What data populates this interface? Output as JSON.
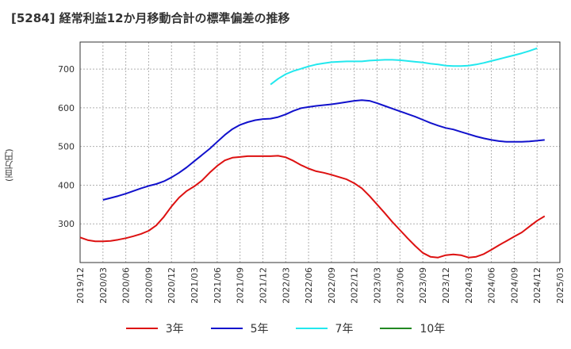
{
  "title": "[5284]  経常利益12か月移動合計の標準偏差の推移",
  "chart_data": {
    "type": "line",
    "title": "[5284]  経常利益12か月移動合計の標準偏差の推移",
    "ylabel": "(百万円)",
    "xlabel": "",
    "ylim": [
      200,
      770
    ],
    "xlim": [
      "2019-12",
      "2025-03"
    ],
    "y_ticks": [
      300,
      400,
      500,
      600,
      700
    ],
    "x_ticks": [
      "2019/12",
      "2020/03",
      "2020/06",
      "2020/09",
      "2020/12",
      "2021/03",
      "2021/06",
      "2021/09",
      "2021/12",
      "2022/03",
      "2022/06",
      "2022/09",
      "2022/12",
      "2023/03",
      "2023/06",
      "2023/09",
      "2023/12",
      "2024/03",
      "2024/06",
      "2024/09",
      "2024/12",
      "2025/03"
    ],
    "grid": true,
    "legend_position": "bottom",
    "series": [
      {
        "name": "3年",
        "color": "#dd1111",
        "points": [
          [
            "2019-12",
            265
          ],
          [
            "2020-01",
            258
          ],
          [
            "2020-02",
            255
          ],
          [
            "2020-03",
            255
          ],
          [
            "2020-04",
            256
          ],
          [
            "2020-05",
            259
          ],
          [
            "2020-06",
            263
          ],
          [
            "2020-07",
            268
          ],
          [
            "2020-08",
            274
          ],
          [
            "2020-09",
            282
          ],
          [
            "2020-10",
            296
          ],
          [
            "2020-11",
            318
          ],
          [
            "2020-12",
            345
          ],
          [
            "2021-01",
            368
          ],
          [
            "2021-02",
            385
          ],
          [
            "2021-03",
            397
          ],
          [
            "2021-04",
            412
          ],
          [
            "2021-05",
            432
          ],
          [
            "2021-06",
            450
          ],
          [
            "2021-07",
            464
          ],
          [
            "2021-08",
            471
          ],
          [
            "2021-09",
            473
          ],
          [
            "2021-10",
            475
          ],
          [
            "2021-11",
            475
          ],
          [
            "2021-12",
            475
          ],
          [
            "2022-01",
            475
          ],
          [
            "2022-02",
            476
          ],
          [
            "2022-03",
            472
          ],
          [
            "2022-04",
            463
          ],
          [
            "2022-05",
            452
          ],
          [
            "2022-06",
            443
          ],
          [
            "2022-07",
            436
          ],
          [
            "2022-08",
            432
          ],
          [
            "2022-09",
            427
          ],
          [
            "2022-10",
            421
          ],
          [
            "2022-11",
            415
          ],
          [
            "2022-12",
            405
          ],
          [
            "2023-01",
            392
          ],
          [
            "2023-02",
            372
          ],
          [
            "2023-03",
            350
          ],
          [
            "2023-04",
            328
          ],
          [
            "2023-05",
            305
          ],
          [
            "2023-06",
            284
          ],
          [
            "2023-07",
            263
          ],
          [
            "2023-08",
            243
          ],
          [
            "2023-09",
            225
          ],
          [
            "2023-10",
            215
          ],
          [
            "2023-11",
            213
          ],
          [
            "2023-12",
            219
          ],
          [
            "2024-01",
            221
          ],
          [
            "2024-02",
            219
          ],
          [
            "2024-03",
            213
          ],
          [
            "2024-04",
            215
          ],
          [
            "2024-05",
            222
          ],
          [
            "2024-06",
            233
          ],
          [
            "2024-07",
            245
          ],
          [
            "2024-08",
            256
          ],
          [
            "2024-09",
            267
          ],
          [
            "2024-10",
            278
          ],
          [
            "2024-11",
            293
          ],
          [
            "2024-12",
            308
          ],
          [
            "2025-01",
            320
          ]
        ]
      },
      {
        "name": "5年",
        "color": "#1111cc",
        "points": [
          [
            "2020-03",
            362
          ],
          [
            "2020-04",
            367
          ],
          [
            "2020-05",
            372
          ],
          [
            "2020-06",
            378
          ],
          [
            "2020-07",
            385
          ],
          [
            "2020-08",
            392
          ],
          [
            "2020-09",
            398
          ],
          [
            "2020-10",
            403
          ],
          [
            "2020-11",
            410
          ],
          [
            "2020-12",
            420
          ],
          [
            "2021-01",
            432
          ],
          [
            "2021-02",
            446
          ],
          [
            "2021-03",
            462
          ],
          [
            "2021-04",
            478
          ],
          [
            "2021-05",
            494
          ],
          [
            "2021-06",
            512
          ],
          [
            "2021-07",
            530
          ],
          [
            "2021-08",
            545
          ],
          [
            "2021-09",
            556
          ],
          [
            "2021-10",
            563
          ],
          [
            "2021-11",
            568
          ],
          [
            "2021-12",
            571
          ],
          [
            "2022-01",
            572
          ],
          [
            "2022-02",
            576
          ],
          [
            "2022-03",
            583
          ],
          [
            "2022-04",
            592
          ],
          [
            "2022-05",
            599
          ],
          [
            "2022-06",
            602
          ],
          [
            "2022-07",
            605
          ],
          [
            "2022-08",
            607
          ],
          [
            "2022-09",
            609
          ],
          [
            "2022-10",
            612
          ],
          [
            "2022-11",
            615
          ],
          [
            "2022-12",
            618
          ],
          [
            "2023-01",
            620
          ],
          [
            "2023-02",
            618
          ],
          [
            "2023-03",
            612
          ],
          [
            "2023-04",
            605
          ],
          [
            "2023-05",
            598
          ],
          [
            "2023-06",
            591
          ],
          [
            "2023-07",
            584
          ],
          [
            "2023-08",
            577
          ],
          [
            "2023-09",
            569
          ],
          [
            "2023-10",
            561
          ],
          [
            "2023-11",
            554
          ],
          [
            "2023-12",
            548
          ],
          [
            "2024-01",
            544
          ],
          [
            "2024-02",
            538
          ],
          [
            "2024-03",
            532
          ],
          [
            "2024-04",
            526
          ],
          [
            "2024-05",
            521
          ],
          [
            "2024-06",
            517
          ],
          [
            "2024-07",
            514
          ],
          [
            "2024-08",
            512
          ],
          [
            "2024-09",
            512
          ],
          [
            "2024-10",
            512
          ],
          [
            "2024-11",
            513
          ],
          [
            "2024-12",
            515
          ],
          [
            "2025-01",
            517
          ]
        ]
      },
      {
        "name": "7年",
        "color": "#22e8ee",
        "points": [
          [
            "2022-01",
            660
          ],
          [
            "2022-02",
            675
          ],
          [
            "2022-03",
            687
          ],
          [
            "2022-04",
            695
          ],
          [
            "2022-05",
            701
          ],
          [
            "2022-06",
            707
          ],
          [
            "2022-07",
            712
          ],
          [
            "2022-08",
            715
          ],
          [
            "2022-09",
            718
          ],
          [
            "2022-10",
            719
          ],
          [
            "2022-11",
            720
          ],
          [
            "2022-12",
            720
          ],
          [
            "2023-01",
            720
          ],
          [
            "2023-02",
            722
          ],
          [
            "2023-03",
            723
          ],
          [
            "2023-04",
            724
          ],
          [
            "2023-05",
            724
          ],
          [
            "2023-06",
            723
          ],
          [
            "2023-07",
            721
          ],
          [
            "2023-08",
            719
          ],
          [
            "2023-09",
            717
          ],
          [
            "2023-10",
            714
          ],
          [
            "2023-11",
            712
          ],
          [
            "2023-12",
            709
          ],
          [
            "2024-01",
            708
          ],
          [
            "2024-02",
            708
          ],
          [
            "2024-03",
            709
          ],
          [
            "2024-04",
            712
          ],
          [
            "2024-05",
            716
          ],
          [
            "2024-06",
            721
          ],
          [
            "2024-07",
            726
          ],
          [
            "2024-08",
            731
          ],
          [
            "2024-09",
            736
          ],
          [
            "2024-10",
            741
          ],
          [
            "2024-11",
            747
          ],
          [
            "2024-12",
            754
          ]
        ]
      },
      {
        "name": "10年",
        "color": "#228822",
        "points": []
      }
    ]
  }
}
